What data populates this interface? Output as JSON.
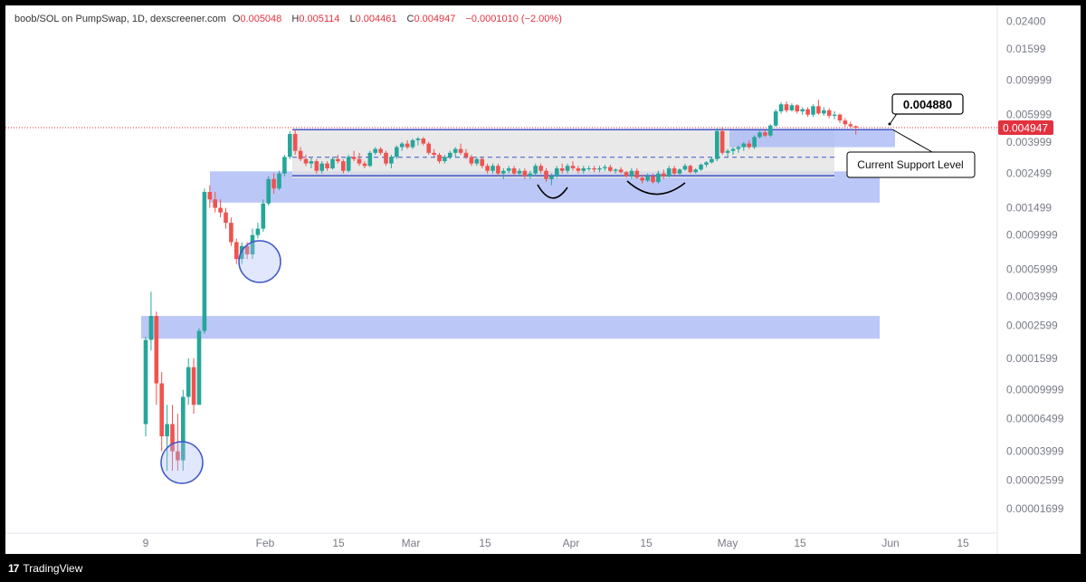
{
  "header": {
    "symbol": "boob/SOL on PumpSwap, 1D, dexscreener.com",
    "open_label": "O",
    "open": "0.005048",
    "high_label": "H",
    "high": "0.005114",
    "low_label": "L",
    "low": "0.004461",
    "close_label": "C",
    "close": "0.004947",
    "change": "−0.0001010 (−2.00%)"
  },
  "footer": {
    "brand": "TradingView",
    "brand_mark": "17"
  },
  "colors": {
    "up": "#26a69a",
    "down": "#ef5350",
    "zone": "#aab9f5",
    "range": "#e2e2e2",
    "line": "#3f55c9",
    "price_tag": "#e2323f"
  },
  "chart_data": {
    "type": "candlestick",
    "yscale": "log",
    "ylim": [
      1.45e-05,
      0.027
    ],
    "yticks": [
      "0.02400",
      "0.01599",
      "0.009999",
      "0.005999",
      "0.003999",
      "0.002499",
      "0.001499",
      "0.0009999",
      "0.0005999",
      "0.0003999",
      "0.0002599",
      "0.0001599",
      "0.00009999",
      "0.00006499",
      "0.00003999",
      "0.00002599",
      "0.00001699"
    ],
    "xticks": [
      "9",
      "Feb",
      "15",
      "Mar",
      "15",
      "Apr",
      "15",
      "May",
      "15",
      "Jun",
      "15"
    ],
    "last_price": "0.004947",
    "annotations": {
      "callout_price": "0.004880",
      "callout_label": "Current Support Level"
    },
    "candles": [
      [
        6e-05,
        0.00022,
        5e-05,
        0.00021
      ],
      [
        0.00021,
        0.00043,
        0.00018,
        0.0003
      ],
      [
        0.0003,
        0.00032,
        8e-05,
        0.00011
      ],
      [
        0.00011,
        0.00013,
        4e-05,
        5e-05
      ],
      [
        5e-05,
        8e-05,
        3e-05,
        6e-05
      ],
      [
        6e-05,
        8e-05,
        3e-05,
        4e-05
      ],
      [
        4e-05,
        7e-05,
        3e-05,
        3.5e-05
      ],
      [
        3.5e-05,
        0.0001,
        3e-05,
        9e-05
      ],
      [
        9e-05,
        0.00016,
        8e-05,
        0.00014
      ],
      [
        0.00014,
        0.00016,
        7e-05,
        8e-05
      ],
      [
        8e-05,
        0.00025,
        8e-05,
        0.00024
      ],
      [
        0.00024,
        0.002,
        0.00023,
        0.0019
      ],
      [
        0.0019,
        0.0021,
        0.0015,
        0.0017
      ],
      [
        0.0017,
        0.0019,
        0.0014,
        0.0015
      ],
      [
        0.0015,
        0.0017,
        0.0013,
        0.0014
      ],
      [
        0.0014,
        0.0015,
        0.0011,
        0.0012
      ],
      [
        0.0012,
        0.0013,
        0.00085,
        0.0009
      ],
      [
        0.0009,
        0.00095,
        0.00065,
        0.0007
      ],
      [
        0.0007,
        0.0009,
        0.00065,
        0.00085
      ],
      [
        0.00085,
        0.0009,
        0.0007,
        0.00075
      ],
      [
        0.00075,
        0.0011,
        0.0007,
        0.001
      ],
      [
        0.001,
        0.0012,
        0.00095,
        0.0011
      ],
      [
        0.0011,
        0.0017,
        0.00105,
        0.0016
      ],
      [
        0.0016,
        0.0024,
        0.00155,
        0.0023
      ],
      [
        0.0023,
        0.0025,
        0.00185,
        0.002
      ],
      [
        0.002,
        0.0026,
        0.00195,
        0.0025
      ],
      [
        0.0025,
        0.0033,
        0.0024,
        0.0032
      ],
      [
        0.0032,
        0.0047,
        0.0031,
        0.0045
      ],
      [
        0.0045,
        0.0048,
        0.0033,
        0.0035
      ],
      [
        0.0035,
        0.0037,
        0.003,
        0.0031
      ],
      [
        0.0031,
        0.0033,
        0.0028,
        0.0029
      ],
      [
        0.0029,
        0.0032,
        0.0027,
        0.003
      ],
      [
        0.003,
        0.0031,
        0.0025,
        0.0026
      ],
      [
        0.0026,
        0.003,
        0.0025,
        0.0029
      ],
      [
        0.0029,
        0.003,
        0.0026,
        0.0027
      ],
      [
        0.0027,
        0.0032,
        0.00265,
        0.0031
      ],
      [
        0.0031,
        0.0033,
        0.0029,
        0.003
      ],
      [
        0.003,
        0.0031,
        0.0025,
        0.0026
      ],
      [
        0.0026,
        0.0033,
        0.00255,
        0.0032
      ],
      [
        0.0032,
        0.0035,
        0.003,
        0.0031
      ],
      [
        0.0031,
        0.0034,
        0.0028,
        0.0029
      ],
      [
        0.0029,
        0.003,
        0.0027,
        0.0028
      ],
      [
        0.0028,
        0.0035,
        0.00275,
        0.0034
      ],
      [
        0.0034,
        0.0037,
        0.0033,
        0.0036
      ],
      [
        0.0036,
        0.0037,
        0.0033,
        0.0034
      ],
      [
        0.0034,
        0.0035,
        0.0028,
        0.0029
      ],
      [
        0.0029,
        0.0033,
        0.0027,
        0.0032
      ],
      [
        0.0032,
        0.0038,
        0.0031,
        0.0037
      ],
      [
        0.0037,
        0.004,
        0.0035,
        0.0039
      ],
      [
        0.0039,
        0.0041,
        0.0036,
        0.0037
      ],
      [
        0.0037,
        0.0042,
        0.0036,
        0.0041
      ],
      [
        0.0041,
        0.0043,
        0.0038,
        0.0042
      ],
      [
        0.0042,
        0.0043,
        0.0038,
        0.0039
      ],
      [
        0.0039,
        0.004,
        0.0033,
        0.0034
      ],
      [
        0.0034,
        0.0036,
        0.0032,
        0.0033
      ],
      [
        0.0033,
        0.0034,
        0.0029,
        0.003
      ],
      [
        0.003,
        0.0033,
        0.0029,
        0.0032
      ],
      [
        0.0032,
        0.0035,
        0.0031,
        0.0034
      ],
      [
        0.0034,
        0.0037,
        0.0032,
        0.0036
      ],
      [
        0.0036,
        0.0039,
        0.0033,
        0.0034
      ],
      [
        0.0034,
        0.0036,
        0.0031,
        0.0032
      ],
      [
        0.0032,
        0.0033,
        0.0028,
        0.0029
      ],
      [
        0.0029,
        0.0032,
        0.0028,
        0.0031
      ],
      [
        0.0031,
        0.0032,
        0.0027,
        0.0028
      ],
      [
        0.0028,
        0.0029,
        0.0025,
        0.0026
      ],
      [
        0.0026,
        0.0029,
        0.0025,
        0.0028
      ],
      [
        0.0028,
        0.0029,
        0.0024,
        0.0025
      ],
      [
        0.0025,
        0.0027,
        0.0023,
        0.0026
      ],
      [
        0.0026,
        0.0028,
        0.0025,
        0.0027
      ],
      [
        0.0027,
        0.0028,
        0.0024,
        0.0025
      ],
      [
        0.0025,
        0.0027,
        0.0024,
        0.0026
      ],
      [
        0.0026,
        0.0027,
        0.0023,
        0.0024
      ],
      [
        0.0024,
        0.0026,
        0.0023,
        0.0025
      ],
      [
        0.0025,
        0.0029,
        0.0024,
        0.0028
      ],
      [
        0.0028,
        0.0029,
        0.0025,
        0.0026
      ],
      [
        0.0026,
        0.0027,
        0.0022,
        0.0023
      ],
      [
        0.0023,
        0.0025,
        0.0021,
        0.0024
      ],
      [
        0.0024,
        0.0028,
        0.00235,
        0.0027
      ],
      [
        0.0027,
        0.0029,
        0.0025,
        0.0026
      ],
      [
        0.0026,
        0.0029,
        0.0025,
        0.0028
      ],
      [
        0.0028,
        0.003,
        0.0026,
        0.0027
      ],
      [
        0.0027,
        0.0028,
        0.0025,
        0.0026
      ],
      [
        0.0026,
        0.0028,
        0.0025,
        0.0027
      ],
      [
        0.0027,
        0.0028,
        0.0026,
        0.0027
      ],
      [
        0.0027,
        0.0028,
        0.00255,
        0.00265
      ],
      [
        0.00265,
        0.0028,
        0.00255,
        0.0027
      ],
      [
        0.0027,
        0.00285,
        0.0026,
        0.00275
      ],
      [
        0.00275,
        0.00285,
        0.00255,
        0.0026
      ],
      [
        0.0026,
        0.0027,
        0.0025,
        0.00265
      ],
      [
        0.00265,
        0.00275,
        0.0025,
        0.00255
      ],
      [
        0.00255,
        0.0026,
        0.00235,
        0.0024
      ],
      [
        0.0024,
        0.0027,
        0.0023,
        0.0026
      ],
      [
        0.0026,
        0.0027,
        0.0023,
        0.00235
      ],
      [
        0.00235,
        0.00245,
        0.00215,
        0.00225
      ],
      [
        0.00225,
        0.0025,
        0.0022,
        0.0024
      ],
      [
        0.0024,
        0.0025,
        0.00215,
        0.0022
      ],
      [
        0.0022,
        0.0026,
        0.00215,
        0.0025
      ],
      [
        0.0025,
        0.00265,
        0.0023,
        0.0024
      ],
      [
        0.0024,
        0.0028,
        0.00235,
        0.0027
      ],
      [
        0.0027,
        0.0028,
        0.0024,
        0.0025
      ],
      [
        0.0025,
        0.0027,
        0.00245,
        0.00265
      ],
      [
        0.00265,
        0.0029,
        0.0026,
        0.0028
      ],
      [
        0.0028,
        0.00285,
        0.0025,
        0.00255
      ],
      [
        0.00255,
        0.0027,
        0.0025,
        0.00265
      ],
      [
        0.00265,
        0.0029,
        0.0026,
        0.00285
      ],
      [
        0.00285,
        0.003,
        0.00275,
        0.00295
      ],
      [
        0.00295,
        0.0032,
        0.0029,
        0.0031
      ],
      [
        0.0031,
        0.0049,
        0.003,
        0.0047
      ],
      [
        0.0047,
        0.005,
        0.0033,
        0.0034
      ],
      [
        0.0034,
        0.0036,
        0.0032,
        0.0035
      ],
      [
        0.0035,
        0.0037,
        0.0033,
        0.0036
      ],
      [
        0.0036,
        0.0038,
        0.0034,
        0.0037
      ],
      [
        0.0037,
        0.004,
        0.0035,
        0.0039
      ],
      [
        0.0039,
        0.0041,
        0.0036,
        0.0037
      ],
      [
        0.0037,
        0.0044,
        0.0036,
        0.0043
      ],
      [
        0.0043,
        0.0047,
        0.0042,
        0.0046
      ],
      [
        0.0046,
        0.0048,
        0.0043,
        0.0044
      ],
      [
        0.0044,
        0.0052,
        0.0043,
        0.0051
      ],
      [
        0.0051,
        0.0065,
        0.005,
        0.0063
      ],
      [
        0.0063,
        0.0072,
        0.0061,
        0.007
      ],
      [
        0.007,
        0.0073,
        0.0062,
        0.0064
      ],
      [
        0.0064,
        0.0071,
        0.0063,
        0.0069
      ],
      [
        0.0069,
        0.007,
        0.0061,
        0.0063
      ],
      [
        0.0063,
        0.0067,
        0.006,
        0.0065
      ],
      [
        0.0065,
        0.0067,
        0.0058,
        0.006
      ],
      [
        0.006,
        0.007,
        0.0058,
        0.0068
      ],
      [
        0.0068,
        0.0075,
        0.006,
        0.0061
      ],
      [
        0.0061,
        0.0067,
        0.0059,
        0.0064
      ],
      [
        0.0064,
        0.0066,
        0.0057,
        0.0059
      ],
      [
        0.0059,
        0.0063,
        0.0056,
        0.006
      ],
      [
        0.006,
        0.0061,
        0.0053,
        0.0055
      ],
      [
        0.0055,
        0.0057,
        0.005,
        0.0052
      ],
      [
        0.0052,
        0.0054,
        0.0049,
        0.005048
      ],
      [
        0.005048,
        0.005114,
        0.004461,
        0.004947
      ]
    ]
  }
}
